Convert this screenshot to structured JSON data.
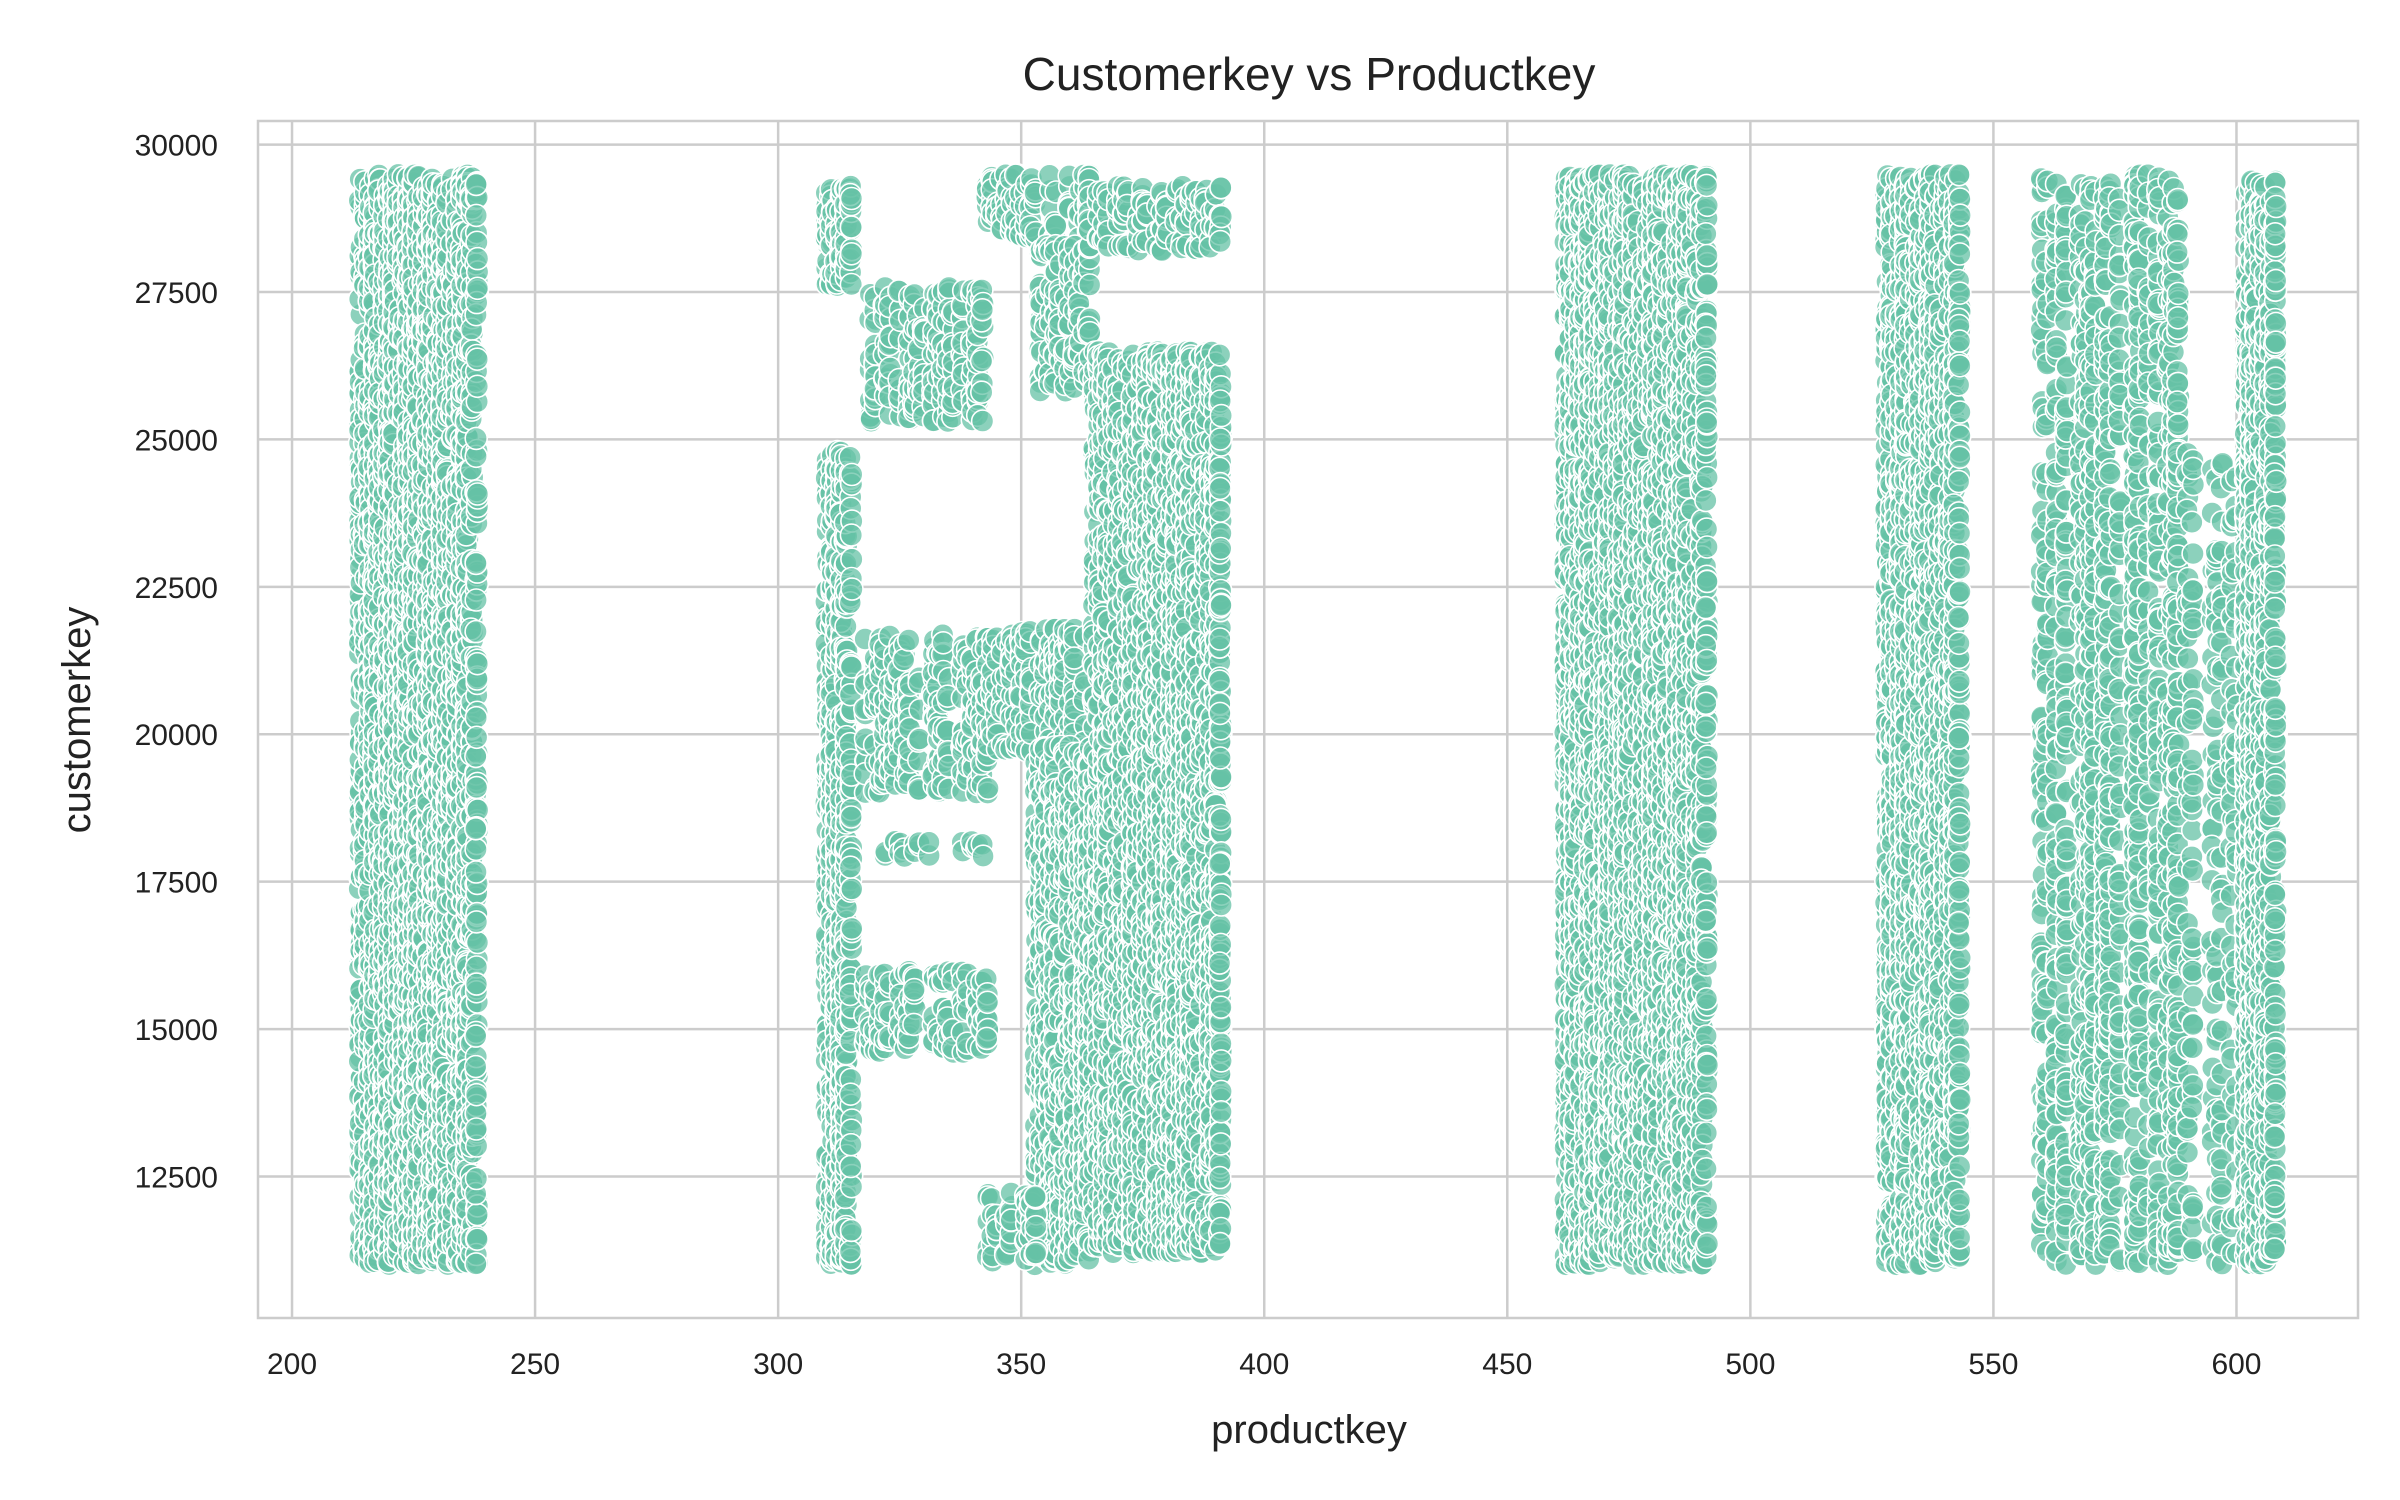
{
  "chart_data": {
    "type": "scatter",
    "title": "Customerkey vs Productkey",
    "xlabel": "productkey",
    "ylabel": "customerkey",
    "xlim": [
      193,
      625
    ],
    "ylim": [
      10100,
      30400
    ],
    "xticks": [
      200,
      250,
      300,
      350,
      400,
      450,
      500,
      550,
      600
    ],
    "yticks": [
      12500,
      15000,
      17500,
      20000,
      22500,
      25000,
      27500,
      30000
    ],
    "grid": true,
    "legend": "none",
    "marker_color": "#66c2a5",
    "marker_edge_color": "#ffffff",
    "marker_alpha": 0.75,
    "series": [
      {
        "clusters": [
          {
            "x": [
              214,
              238
            ],
            "y": [
              11000,
              29500
            ],
            "density": "dense"
          },
          {
            "x": [
              310,
              315
            ],
            "y": [
              27600,
              29300
            ],
            "density": "dense"
          },
          {
            "x": [
              310,
              315
            ],
            "y": [
              11000,
              24800
            ],
            "density": "dense"
          },
          {
            "x": [
              318,
              343
            ],
            "y": [
              25300,
              27600
            ],
            "density": "medium"
          },
          {
            "x": [
              318,
              343
            ],
            "y": [
              19000,
              21700
            ],
            "density": "medium"
          },
          {
            "x": [
              318,
              343
            ],
            "y": [
              17900,
              18200
            ],
            "density": "sparse"
          },
          {
            "x": [
              318,
              343
            ],
            "y": [
              14600,
              16000
            ],
            "density": "medium"
          },
          {
            "x": [
              343,
              364
            ],
            "y": [
              28400,
              29500
            ],
            "density": "medium"
          },
          {
            "x": [
              353,
              364
            ],
            "y": [
              25800,
              28300
            ],
            "density": "medium"
          },
          {
            "x": [
              343,
              364
            ],
            "y": [
              19700,
              21800
            ],
            "density": "medium"
          },
          {
            "x": [
              353,
              364
            ],
            "y": [
              11000,
              19800
            ],
            "density": "dense"
          },
          {
            "x": [
              343,
              353
            ],
            "y": [
              11000,
              12300
            ],
            "density": "medium"
          },
          {
            "x": [
              364,
              391
            ],
            "y": [
              28200,
              29300
            ],
            "density": "medium"
          },
          {
            "x": [
              365,
              391
            ],
            "y": [
              11200,
              26500
            ],
            "density": "dense"
          },
          {
            "x": [
              462,
              491
            ],
            "y": [
              11000,
              29500
            ],
            "density": "dense"
          },
          {
            "x": [
              528,
              543
            ],
            "y": [
              11000,
              29500
            ],
            "density": "dense"
          },
          {
            "x": [
              560,
              588
            ],
            "y": [
              11000,
              29500
            ],
            "density": "medium"
          },
          {
            "x": [
              588,
              602
            ],
            "y": [
              11000,
              24800
            ],
            "density": "sparse"
          },
          {
            "x": [
              602,
              608
            ],
            "y": [
              11000,
              29500
            ],
            "density": "dense"
          }
        ]
      }
    ]
  }
}
